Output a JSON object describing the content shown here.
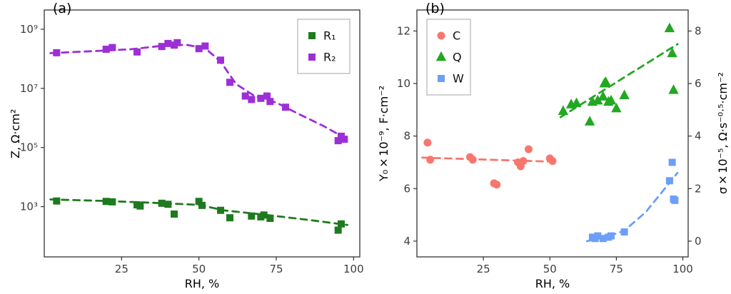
{
  "figure": {
    "background": "#ffffff",
    "border_color": "#333333",
    "tick_text_color": "#3d3d3d",
    "legend_border_color": "#b3b3b3"
  },
  "chart_data": [
    {
      "type": "scatter",
      "tag": "(a)",
      "xlabel": "RH, %",
      "ylabel": "Z, Ω·cm²",
      "x": {
        "min": 0,
        "max": 102,
        "ticks": [
          25,
          50,
          75,
          100
        ]
      },
      "y": {
        "scale": "log10",
        "min": 1.3,
        "max": 9.65,
        "ticks": [
          {
            "v": 3,
            "label": "10³"
          },
          {
            "v": 5,
            "label": "10⁵"
          },
          {
            "v": 7,
            "label": "10⁷"
          },
          {
            "v": 9,
            "label": "10⁹"
          }
        ]
      },
      "legend": {
        "position": "top-right",
        "items": [
          {
            "series": "R1",
            "label": "R₁"
          },
          {
            "series": "R2",
            "label": "R₂"
          }
        ]
      },
      "series": [
        {
          "name": "R1",
          "label": "R₁",
          "marker": "square",
          "color": "#1E7A1E",
          "line": "dashed",
          "points": [
            [
              4,
              1550
            ],
            [
              20,
              1500
            ],
            [
              22,
              1450
            ],
            [
              30,
              1150
            ],
            [
              31,
              1050
            ],
            [
              38,
              1300
            ],
            [
              40,
              1200
            ],
            [
              42,
              560
            ],
            [
              50,
              1500
            ],
            [
              51,
              1100
            ],
            [
              57,
              750
            ],
            [
              60,
              420
            ],
            [
              67,
              480
            ],
            [
              70,
              450
            ],
            [
              71,
              520
            ],
            [
              73,
              400
            ],
            [
              95,
              160
            ],
            [
              96,
              260
            ]
          ],
          "trend": [
            [
              2,
              1750
            ],
            [
              20,
              1550
            ],
            [
              35,
              1350
            ],
            [
              50,
              1150
            ],
            [
              58,
              750
            ],
            [
              70,
              550
            ],
            [
              85,
              360
            ],
            [
              98,
              240
            ]
          ]
        },
        {
          "name": "R2",
          "label": "R₂",
          "marker": "square",
          "color": "#9D2FD6",
          "line": "dashed",
          "points": [
            [
              4,
              160000000.0
            ],
            [
              20,
              210000000.0
            ],
            [
              22,
              240000000.0
            ],
            [
              30,
              170000000.0
            ],
            [
              38,
              260000000.0
            ],
            [
              40,
              330000000.0
            ],
            [
              42,
              290000000.0
            ],
            [
              43,
              350000000.0
            ],
            [
              50,
              220000000.0
            ],
            [
              52,
              270000000.0
            ],
            [
              57,
              90000000.0
            ],
            [
              60,
              16000000.0
            ],
            [
              65,
              5500000.0
            ],
            [
              67,
              4200000.0
            ],
            [
              70,
              4600000.0
            ],
            [
              72,
              5500000.0
            ],
            [
              73,
              3600000.0
            ],
            [
              78,
              2300000.0
            ],
            [
              95,
              170000.0
            ],
            [
              96,
              240000.0
            ],
            [
              97,
              190000.0
            ]
          ],
          "trend": [
            [
              2,
              155000000.0
            ],
            [
              15,
              180000000.0
            ],
            [
              28,
              210000000.0
            ],
            [
              40,
              290000000.0
            ],
            [
              46,
              295000000.0
            ],
            [
              52,
              230000000.0
            ],
            [
              57,
              80000000.0
            ],
            [
              62,
              14000000.0
            ],
            [
              68,
              5500000.0
            ],
            [
              75,
              3300000.0
            ],
            [
              82,
              1400000.0
            ],
            [
              90,
              550000.0
            ],
            [
              98,
              190000.0
            ]
          ]
        }
      ]
    },
    {
      "type": "scatter",
      "tag": "(b)",
      "xlabel": "RH, %",
      "ylabel": "Y₀×10⁻⁹, F·cm⁻²",
      "x": {
        "min": 0,
        "max": 102,
        "ticks": [
          25,
          50,
          75,
          100
        ]
      },
      "y": {
        "scale": "linear",
        "min": 3.4,
        "max": 12.8,
        "ticks": [
          {
            "v": 4,
            "label": "4"
          },
          {
            "v": 6,
            "label": "6"
          },
          {
            "v": 8,
            "label": "8"
          },
          {
            "v": 10,
            "label": "10"
          },
          {
            "v": 12,
            "label": "12"
          }
        ]
      },
      "y2": {
        "label": "σ×10⁻⁵, Ω·s⁻⁰·⁵·cm⁻²",
        "ticks": [
          {
            "v": 4,
            "label": "0"
          },
          {
            "v": 6,
            "label": "2"
          },
          {
            "v": 8,
            "label": "4"
          },
          {
            "v": 10,
            "label": "6"
          },
          {
            "v": 12,
            "label": "8"
          }
        ]
      },
      "legend": {
        "position": "top-left",
        "items": [
          {
            "series": "C",
            "label": "C"
          },
          {
            "series": "Q",
            "label": "Q"
          },
          {
            "series": "W",
            "label": "W"
          }
        ]
      },
      "series": [
        {
          "name": "C",
          "label": "C",
          "marker": "circle",
          "color": "#F8766D",
          "line": "dashed",
          "points": [
            [
              4,
              7.75
            ],
            [
              5,
              7.1
            ],
            [
              20,
              7.2
            ],
            [
              21,
              7.1
            ],
            [
              29,
              6.2
            ],
            [
              30,
              6.15
            ],
            [
              38,
              7.0
            ],
            [
              39,
              6.85
            ],
            [
              40,
              7.05
            ],
            [
              42,
              7.5
            ],
            [
              50,
              7.15
            ],
            [
              51,
              7.05
            ]
          ],
          "trend": [
            [
              2,
              7.18
            ],
            [
              27,
              7.1
            ],
            [
              53,
              7.02
            ]
          ]
        },
        {
          "name": "Q",
          "label": "Q",
          "marker": "triangle",
          "color": "#22A822",
          "line": "dashed",
          "points": [
            [
              55,
              8.95
            ],
            [
              58,
              9.2
            ],
            [
              60,
              9.25
            ],
            [
              65,
              8.55
            ],
            [
              66,
              9.3
            ],
            [
              68,
              9.35
            ],
            [
              70,
              9.5
            ],
            [
              70.5,
              10.0
            ],
            [
              71,
              10.05
            ],
            [
              72,
              9.3
            ],
            [
              73,
              9.35
            ],
            [
              75,
              9.05
            ],
            [
              78,
              9.55
            ],
            [
              95,
              12.1
            ],
            [
              96,
              11.15
            ],
            [
              96.5,
              9.75
            ]
          ],
          "trend": [
            [
              54,
              8.72
            ],
            [
              98,
              11.5
            ]
          ]
        },
        {
          "name": "W",
          "label": "W",
          "marker": "square",
          "color": "#6C9FF8",
          "line": "dashed",
          "points": [
            [
              66,
              4.15
            ],
            [
              67,
              4.1
            ],
            [
              68,
              4.2
            ],
            [
              70,
              4.1
            ],
            [
              72,
              4.15
            ],
            [
              73,
              4.2
            ],
            [
              78,
              4.35
            ],
            [
              95,
              6.3
            ],
            [
              96,
              7.0
            ],
            [
              96.5,
              5.6
            ],
            [
              97,
              5.55
            ]
          ],
          "trend": [
            [
              64,
              4.0
            ],
            [
              72,
              4.18
            ],
            [
              78,
              4.4
            ],
            [
              86,
              5.1
            ],
            [
              98,
              6.6
            ]
          ]
        }
      ]
    }
  ]
}
